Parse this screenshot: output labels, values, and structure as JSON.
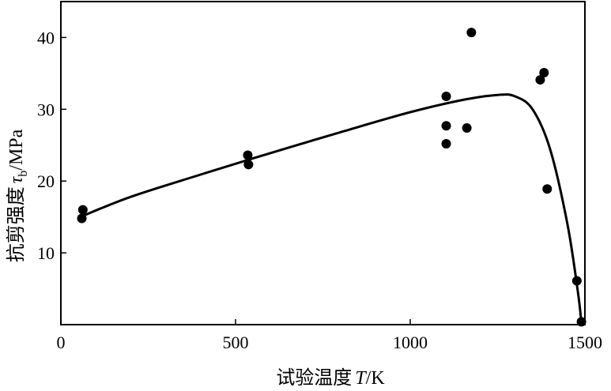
{
  "chart_data": {
    "type": "scatter",
    "xlabel": {
      "prefix": "试验温度",
      "symbol": "T",
      "unit": "/K"
    },
    "ylabel": {
      "prefix": "抗剪强度",
      "symbol": "τ",
      "subscript": "b",
      "unit": "/MPa"
    },
    "xlim": [
      0,
      1500
    ],
    "ylim": [
      0,
      45
    ],
    "xticks": [
      0,
      500,
      1000,
      1500
    ],
    "yticks": [
      10,
      20,
      30,
      40
    ],
    "grid": false,
    "legend": "none",
    "series": [
      {
        "kind": "points",
        "x": [
          60,
          63,
          535,
          537,
          1103,
          1103,
          1103,
          1162,
          1175,
          1372,
          1383,
          1392,
          1477,
          1490
        ],
        "y": [
          14.8,
          16.0,
          23.6,
          22.3,
          31.8,
          27.7,
          25.2,
          27.4,
          40.7,
          34.1,
          35.1,
          18.9,
          6.1,
          0.4
        ]
      },
      {
        "kind": "curve",
        "x": [
          60,
          200,
          400,
          600,
          800,
          1000,
          1150,
          1250,
          1300,
          1350,
          1400,
          1450,
          1480,
          1490
        ],
        "y": [
          15.1,
          17.8,
          20.9,
          23.9,
          26.8,
          29.6,
          31.3,
          32.0,
          31.8,
          30.0,
          24.5,
          14.0,
          4.5,
          0.3
        ]
      }
    ]
  }
}
